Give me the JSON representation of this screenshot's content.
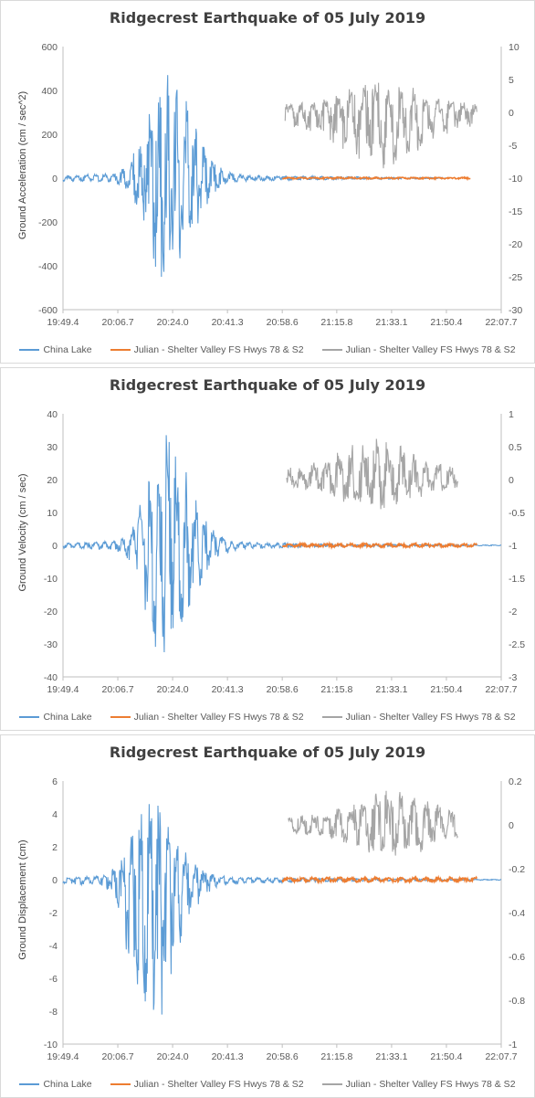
{
  "legend": [
    {
      "label": "China Lake",
      "color": "#5b9bd5"
    },
    {
      "label": "Julian - Shelter Valley FS Hwys 78 & S2",
      "color": "#ed7d31"
    },
    {
      "label": "Julian - Shelter Valley FS Hwys 78 & S2",
      "color": "#a5a5a5"
    }
  ],
  "chart_data": [
    {
      "type": "line",
      "title": "Ridgecrest Earthquake of 05 July 2019",
      "ylabel": "Ground Acceleration (cm / sec^2)",
      "x_ticks": [
        "19:49.4",
        "20:06.7",
        "20:24.0",
        "20:41.3",
        "20:58.6",
        "21:15.8",
        "21:33.1",
        "21:50.4",
        "22:07.7"
      ],
      "ylim": [
        -600,
        600
      ],
      "y_ticks": [
        "600",
        "400",
        "200",
        "0",
        "-200",
        "-400",
        "-600"
      ],
      "y2lim": [
        -30,
        10
      ],
      "y2_ticks": [
        "10",
        "5",
        "0",
        "-5",
        "-10",
        "-15",
        "-20",
        "-25",
        "-30"
      ],
      "grid": false,
      "legend_position": "bottom",
      "series": [
        {
          "name": "China Lake",
          "axis": "left",
          "color": "#5b9bd5",
          "x_range": [
            "19:49.4",
            "21:50.4"
          ],
          "peak_at": "20:21.0",
          "peak_max": 470,
          "peak_min": -450
        },
        {
          "name": "Julian - Shelter Valley FS Hwys 78 & S2",
          "axis": "left",
          "color": "#ed7d31",
          "x_range": [
            "20:58.6",
            "21:58.0"
          ],
          "peak_max": 4,
          "peak_min": -4
        },
        {
          "name": "Julian - Shelter Valley FS Hwys 78 & S2",
          "axis": "right",
          "color": "#a5a5a5",
          "x_range": [
            "20:59.5",
            "22:00.0"
          ],
          "peak_at": "21:30.0",
          "peak_max": 4.5,
          "peak_min": -8.5
        }
      ]
    },
    {
      "type": "line",
      "title": "Ridgecrest Earthquake of 05 July 2019",
      "ylabel": "Ground Velocity (cm / sec)",
      "x_ticks": [
        "19:49.4",
        "20:06.7",
        "20:24.0",
        "20:41.3",
        "20:58.6",
        "21:15.8",
        "21:33.1",
        "21:50.4",
        "22:07.7"
      ],
      "ylim": [
        -40,
        40
      ],
      "y_ticks": [
        "40",
        "30",
        "20",
        "10",
        "0",
        "-10",
        "-20",
        "-30",
        "-40"
      ],
      "y2lim": [
        -3,
        1
      ],
      "y2_ticks": [
        "1",
        "0.5",
        "0",
        "-0.5",
        "-1",
        "-1.5",
        "-2",
        "-2.5",
        "-3"
      ],
      "grid": false,
      "legend_position": "bottom",
      "series": [
        {
          "name": "China Lake",
          "axis": "left",
          "color": "#5b9bd5",
          "x_range": [
            "19:49.4",
            "22:07.7"
          ],
          "peak_at": "20:21.0",
          "peak_max": 33.5,
          "peak_min": -32.5
        },
        {
          "name": "Julian - Shelter Valley FS Hwys 78 & S2",
          "axis": "left",
          "color": "#ed7d31",
          "x_range": [
            "20:58.6",
            "22:00.0"
          ],
          "peak_max": 0.6,
          "peak_min": -0.6
        },
        {
          "name": "Julian - Shelter Valley FS Hwys 78 & S2",
          "axis": "right",
          "color": "#a5a5a5",
          "x_range": [
            "21:00.0",
            "21:54.0"
          ],
          "peak_at": "21:28.0",
          "peak_max": 0.62,
          "peak_min": -0.45
        }
      ]
    },
    {
      "type": "line",
      "title": "Ridgecrest Earthquake of 05 July 2019",
      "ylabel": "Ground Displacement (cm)",
      "x_ticks": [
        "19:49.4",
        "20:06.7",
        "20:24.0",
        "20:41.3",
        "20:58.6",
        "21:15.8",
        "21:33.1",
        "21:50.4",
        "22:07.7"
      ],
      "ylim": [
        -10,
        6
      ],
      "y_ticks": [
        "6",
        "4",
        "2",
        "0",
        "-2",
        "-4",
        "-6",
        "-8",
        "-10"
      ],
      "y2lim": [
        -1,
        0.2
      ],
      "y2_ticks": [
        "0.2",
        "0",
        "-0.2",
        "-0.4",
        "-0.6",
        "-0.8",
        "-1"
      ],
      "grid": false,
      "legend_position": "bottom",
      "series": [
        {
          "name": "China Lake",
          "axis": "left",
          "color": "#5b9bd5",
          "x_range": [
            "19:49.4",
            "22:07.7"
          ],
          "peak_at": "20:16.0",
          "peak_max": 4.6,
          "peak_min": -8.2
        },
        {
          "name": "Julian - Shelter Valley FS Hwys 78 & S2",
          "axis": "left",
          "color": "#ed7d31",
          "x_range": [
            "20:58.6",
            "22:00.0"
          ],
          "peak_max": 0.15,
          "peak_min": -0.15
        },
        {
          "name": "Julian - Shelter Valley FS Hwys 78 & S2",
          "axis": "right",
          "color": "#a5a5a5",
          "x_range": [
            "21:00.5",
            "21:54.0"
          ],
          "peak_at": "21:33.0",
          "peak_max": 0.155,
          "peak_min": -0.14
        }
      ]
    }
  ]
}
